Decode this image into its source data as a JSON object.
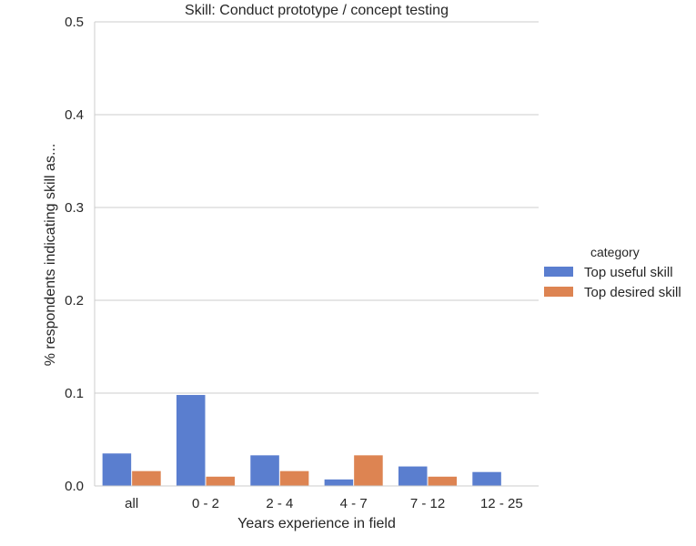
{
  "chart_data": {
    "type": "bar",
    "title": "Skill: Conduct prototype / concept testing",
    "xlabel": "Years experience in field",
    "ylabel": "% respondents indicating skill as...",
    "categories": [
      "all",
      "0 - 2",
      "2 - 4",
      "4 - 7",
      "7 - 12",
      "12 - 25"
    ],
    "series": [
      {
        "name": "Top useful skill",
        "values": [
          0.035,
          0.098,
          0.033,
          0.007,
          0.021,
          0.015
        ],
        "color": "#5a7ecf"
      },
      {
        "name": "Top desired skill",
        "values": [
          0.016,
          0.01,
          0.016,
          0.033,
          0.01,
          0.0
        ],
        "color": "#dd8452"
      }
    ],
    "ylim": [
      0,
      0.5
    ],
    "yticks": [
      "0.0",
      "0.1",
      "0.2",
      "0.3",
      "0.4",
      "0.5"
    ],
    "grid": true,
    "legend": {
      "title": "category",
      "placement": "right"
    }
  }
}
